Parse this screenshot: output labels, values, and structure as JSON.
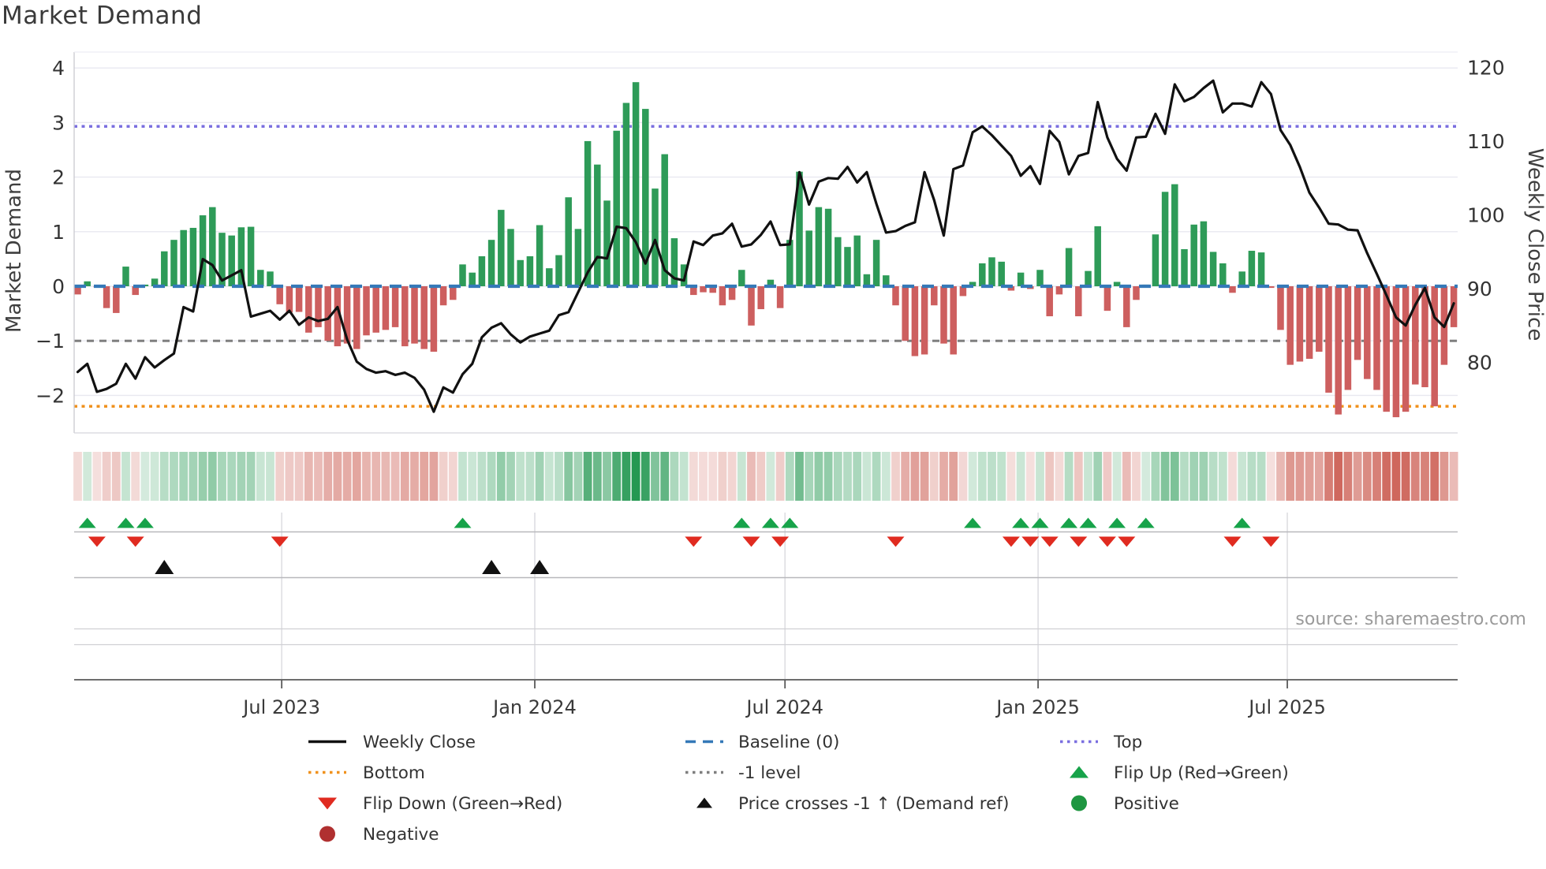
{
  "title": "Market Demand",
  "source_note": "source: sharemaestro.com",
  "left_axis": {
    "label": "Market Demand",
    "ticks": [
      4,
      3,
      2,
      1,
      0,
      -1,
      -2
    ]
  },
  "right_axis": {
    "label": "Weekly Close Price",
    "ticks": [
      120,
      110,
      100,
      90,
      80
    ]
  },
  "x_axis": {
    "tick_labels": [
      "Jul 2023",
      "Jan 2024",
      "Jul 2024",
      "Jan 2025",
      "Jul 2025"
    ],
    "tick_weeks": [
      21.2,
      47.5,
      73.5,
      99.8,
      125.7
    ]
  },
  "colors": {
    "bar_positive": "#2e9b58",
    "bar_negative": "#cd5f5f",
    "price_line": "#111111",
    "baseline": "#3579b8",
    "top_line": "#7b6fe0",
    "bottom_line": "#f0921e",
    "minus_one_line": "#7f7f7f",
    "flip_up": "#17a34a",
    "flip_down": "#e02b20",
    "cross_marker": "#111111",
    "positive_dot": "#1e9641",
    "negative_dot": "#b03030",
    "grid": "#e8e8f0",
    "tick_text": "#333333",
    "axis_text": "#3f3f3f",
    "source_text": "#9a9a9a",
    "heat_pos_base": "24,146,72",
    "heat_neg_base": "192,57,43"
  },
  "chart_data": {
    "type": "bar",
    "subtype": "bar+line composite with signal heat strip and flip markers",
    "title": "Market Demand",
    "xlabel": "",
    "ylabel_left": "Market Demand",
    "ylabel_right": "Weekly Close Price",
    "ylim_demand": [
      -2.69,
      4.29
    ],
    "price_axis_ticks": [
      80,
      90,
      100,
      110,
      120
    ],
    "reference_lines": {
      "top": 2.93,
      "baseline": 0,
      "minus_one": -1,
      "bottom": -2.2
    },
    "weeks": 144,
    "demand": [
      -0.15,
      0.09,
      -0.02,
      -0.4,
      -0.49,
      0.36,
      -0.16,
      0.03,
      0.14,
      0.64,
      0.85,
      1.03,
      1.07,
      1.3,
      1.45,
      0.98,
      0.93,
      1.08,
      1.09,
      0.3,
      0.27,
      -0.33,
      -0.48,
      -0.47,
      -0.85,
      -0.75,
      -1.0,
      -1.1,
      -1.05,
      -1.15,
      -0.9,
      -0.85,
      -0.8,
      -0.75,
      -1.1,
      -1.05,
      -1.15,
      -1.2,
      -0.35,
      -0.25,
      0.4,
      0.25,
      0.55,
      0.85,
      1.4,
      1.05,
      0.48,
      0.55,
      1.12,
      0.33,
      0.57,
      1.63,
      1.05,
      2.66,
      2.23,
      1.57,
      2.85,
      3.36,
      3.74,
      3.25,
      1.79,
      2.42,
      0.88,
      0.4,
      -0.16,
      -0.11,
      -0.12,
      -0.35,
      -0.25,
      0.3,
      -0.72,
      -0.42,
      0.12,
      -0.4,
      0.85,
      2.1,
      1.02,
      1.45,
      1.42,
      0.9,
      0.72,
      0.93,
      0.22,
      0.85,
      0.2,
      -0.35,
      -1.0,
      -1.28,
      -1.25,
      -0.35,
      -1.05,
      -1.25,
      -0.18,
      0.08,
      0.42,
      0.53,
      0.45,
      -0.08,
      0.25,
      -0.05,
      0.3,
      -0.55,
      -0.15,
      0.7,
      -0.55,
      0.28,
      1.1,
      -0.45,
      0.08,
      -0.75,
      -0.25,
      0.03,
      0.95,
      1.73,
      1.87,
      0.68,
      1.13,
      1.19,
      0.63,
      0.42,
      -0.12,
      0.27,
      0.65,
      0.62,
      -0.03,
      -0.8,
      -1.44,
      -1.38,
      -1.33,
      -1.2,
      -1.95,
      -2.35,
      -1.9,
      -1.35,
      -1.7,
      -1.9,
      -2.3,
      -2.4,
      -2.3,
      -1.8,
      -1.85,
      -2.2,
      -1.44,
      -0.75
    ],
    "price": [
      78.7,
      79.8,
      76.0,
      76.4,
      77.1,
      79.8,
      77.8,
      80.7,
      79.3,
      80.3,
      81.2,
      87.5,
      86.9,
      94.0,
      93.2,
      91.1,
      91.8,
      92.5,
      86.2,
      86.6,
      87.0,
      85.8,
      87.0,
      85.1,
      86.1,
      85.6,
      85.9,
      87.5,
      83.1,
      80.1,
      79.1,
      78.6,
      78.8,
      78.3,
      78.6,
      77.9,
      76.3,
      73.3,
      76.6,
      75.9,
      78.4,
      79.8,
      83.4,
      84.7,
      85.3,
      83.8,
      82.7,
      83.5,
      83.9,
      84.3,
      86.4,
      86.8,
      89.5,
      92.2,
      94.3,
      94.1,
      98.4,
      98.2,
      96.3,
      93.4,
      96.6,
      92.5,
      91.4,
      91.1,
      96.4,
      95.9,
      97.2,
      97.5,
      98.8,
      95.7,
      96.0,
      97.3,
      99.1,
      95.9,
      96.0,
      105.8,
      101.4,
      104.5,
      105.0,
      104.9,
      106.5,
      104.4,
      105.8,
      101.5,
      97.6,
      97.8,
      98.5,
      99.0,
      105.8,
      102.0,
      97.2,
      106.2,
      106.7,
      111.2,
      112.0,
      110.8,
      109.4,
      108.0,
      105.3,
      106.6,
      104.2,
      111.4,
      109.9,
      105.5,
      108.0,
      108.4,
      115.3,
      110.5,
      107.6,
      106.0,
      110.5,
      110.6,
      113.7,
      111.0,
      117.7,
      115.4,
      116.0,
      117.2,
      118.2,
      113.9,
      115.1,
      115.1,
      114.7,
      118.0,
      116.4,
      111.5,
      109.5,
      106.5,
      103.0,
      101.0,
      98.8,
      98.7,
      98.0,
      97.9,
      94.8,
      92.0,
      89.1,
      86.1,
      85.0,
      87.8,
      90.1,
      86.1,
      84.8,
      88.0
    ],
    "price_cross_weeks": [
      9,
      43,
      48
    ],
    "legend_position": "bottom",
    "grid": "horizontal-only"
  },
  "legend": {
    "items": [
      {
        "row": 0,
        "col": 0,
        "type": "line",
        "color": "#111111",
        "label": "Weekly Close"
      },
      {
        "row": 0,
        "col": 1,
        "type": "dashed",
        "color": "#3579b8",
        "label": "Baseline (0)"
      },
      {
        "row": 0,
        "col": 2,
        "type": "dotted",
        "color": "#7b6fe0",
        "label": "Top"
      },
      {
        "row": 1,
        "col": 0,
        "type": "dotted",
        "color": "#f0921e",
        "label": "Bottom"
      },
      {
        "row": 1,
        "col": 1,
        "type": "dotted",
        "color": "#7f7f7f",
        "label": "-1 level"
      },
      {
        "row": 1,
        "col": 2,
        "type": "tri-up",
        "color": "#17a34a",
        "label": "Flip Up (Red→Green)"
      },
      {
        "row": 2,
        "col": 0,
        "type": "tri-down",
        "color": "#e02b20",
        "label": "Flip Down (Green→Red)"
      },
      {
        "row": 2,
        "col": 1,
        "type": "tri-up-small",
        "color": "#111111",
        "label": "Price crosses -1 ↑ (Demand ref)"
      },
      {
        "row": 2,
        "col": 2,
        "type": "circle",
        "color": "#1e9641",
        "label": "Positive"
      },
      {
        "row": 3,
        "col": 0,
        "type": "circle",
        "color": "#b03030",
        "label": "Negative"
      }
    ]
  }
}
